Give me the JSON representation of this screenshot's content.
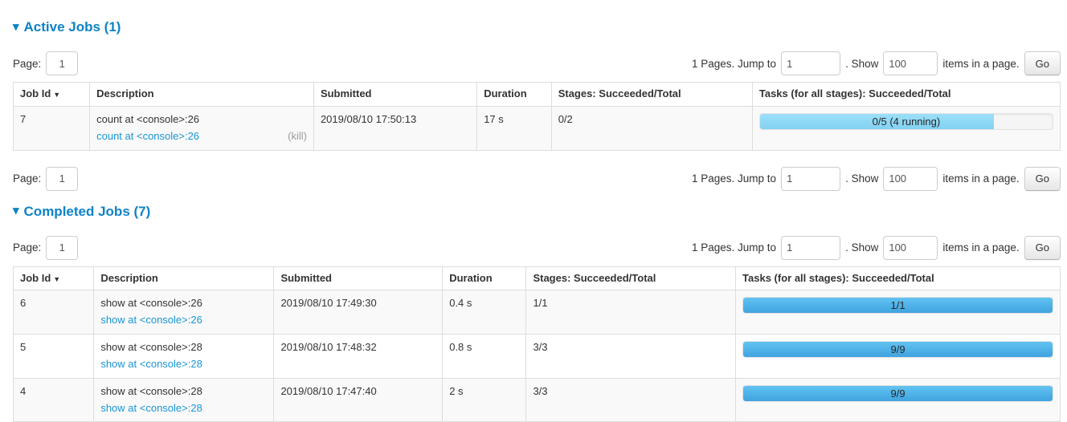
{
  "icons": {
    "collapse": "▾",
    "sort_desc": "▼"
  },
  "pagination": {
    "page_label": "Page:",
    "page_value": "1",
    "pages_jump_text": "1 Pages. Jump to",
    "jump_value": "1",
    "show_text": ". Show",
    "show_value": "100",
    "items_text": "items in a page.",
    "go_label": "Go"
  },
  "job_headers": {
    "job_id": "Job Id",
    "description": "Description",
    "submitted": "Submitted",
    "duration": "Duration",
    "stages": "Stages: Succeeded/Total",
    "tasks": "Tasks (for all stages): Succeeded/Total"
  },
  "active": {
    "title": "Active Jobs (1)",
    "rows": [
      {
        "job_id": "7",
        "description": "count at <console>:26",
        "description_link": "count at <console>:26",
        "kill_label": "(kill)",
        "submitted": "2019/08/10 17:50:13",
        "duration": "17 s",
        "stages": "0/2",
        "tasks_label": "0/5 (4 running)",
        "tasks_percent": 80
      }
    ]
  },
  "completed": {
    "title": "Completed Jobs (7)",
    "rows": [
      {
        "job_id": "6",
        "description": "show at <console>:26",
        "description_link": "show at <console>:26",
        "submitted": "2019/08/10 17:49:30",
        "duration": "0.4 s",
        "stages": "1/1",
        "tasks_label": "1/1",
        "tasks_percent": 100
      },
      {
        "job_id": "5",
        "description": "show at <console>:28",
        "description_link": "show at <console>:28",
        "submitted": "2019/08/10 17:48:32",
        "duration": "0.8 s",
        "stages": "3/3",
        "tasks_label": "9/9",
        "tasks_percent": 100
      },
      {
        "job_id": "4",
        "description": "show at <console>:28",
        "description_link": "show at <console>:28",
        "submitted": "2019/08/10 17:47:40",
        "duration": "2 s",
        "stages": "3/3",
        "tasks_label": "9/9",
        "tasks_percent": 100
      }
    ]
  }
}
